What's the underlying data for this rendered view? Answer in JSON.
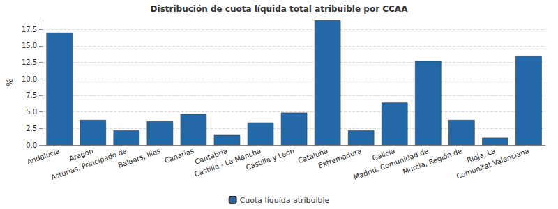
{
  "chart_data": {
    "type": "bar",
    "title": "Distribución de cuota líquida total atribuible por CCAA",
    "y_label": "%",
    "categories": [
      "Andalucía",
      "Aragón",
      "Asturias, Principado de",
      "Balears, Illes",
      "Canarias",
      "Cantabria",
      "Castilla - La Mancha",
      "Castilla y León",
      "Cataluña",
      "Extremadura",
      "Galicia",
      "Madrid, Comunidad de",
      "Murcia, Región de",
      "Rioja, La",
      "Comunitat Valenciana"
    ],
    "series": [
      {
        "name": "Cuota líquida atribuible",
        "color": "#2369a8",
        "values": [
          17.0,
          3.8,
          2.2,
          3.6,
          4.7,
          1.5,
          3.4,
          4.9,
          18.9,
          2.2,
          6.4,
          12.7,
          3.8,
          1.1,
          13.5
        ]
      }
    ],
    "ylim": [
      0,
      19
    ],
    "yticks": [
      {
        "value": 0,
        "label": "0.0"
      },
      2.5,
      {
        "value": 5,
        "label": "5.0"
      },
      7.5,
      {
        "value": 10,
        "label": "10.0"
      },
      12.5,
      {
        "value": 15,
        "label": "15.0"
      },
      17.5
    ],
    "grid": true,
    "legend": "bottom"
  }
}
